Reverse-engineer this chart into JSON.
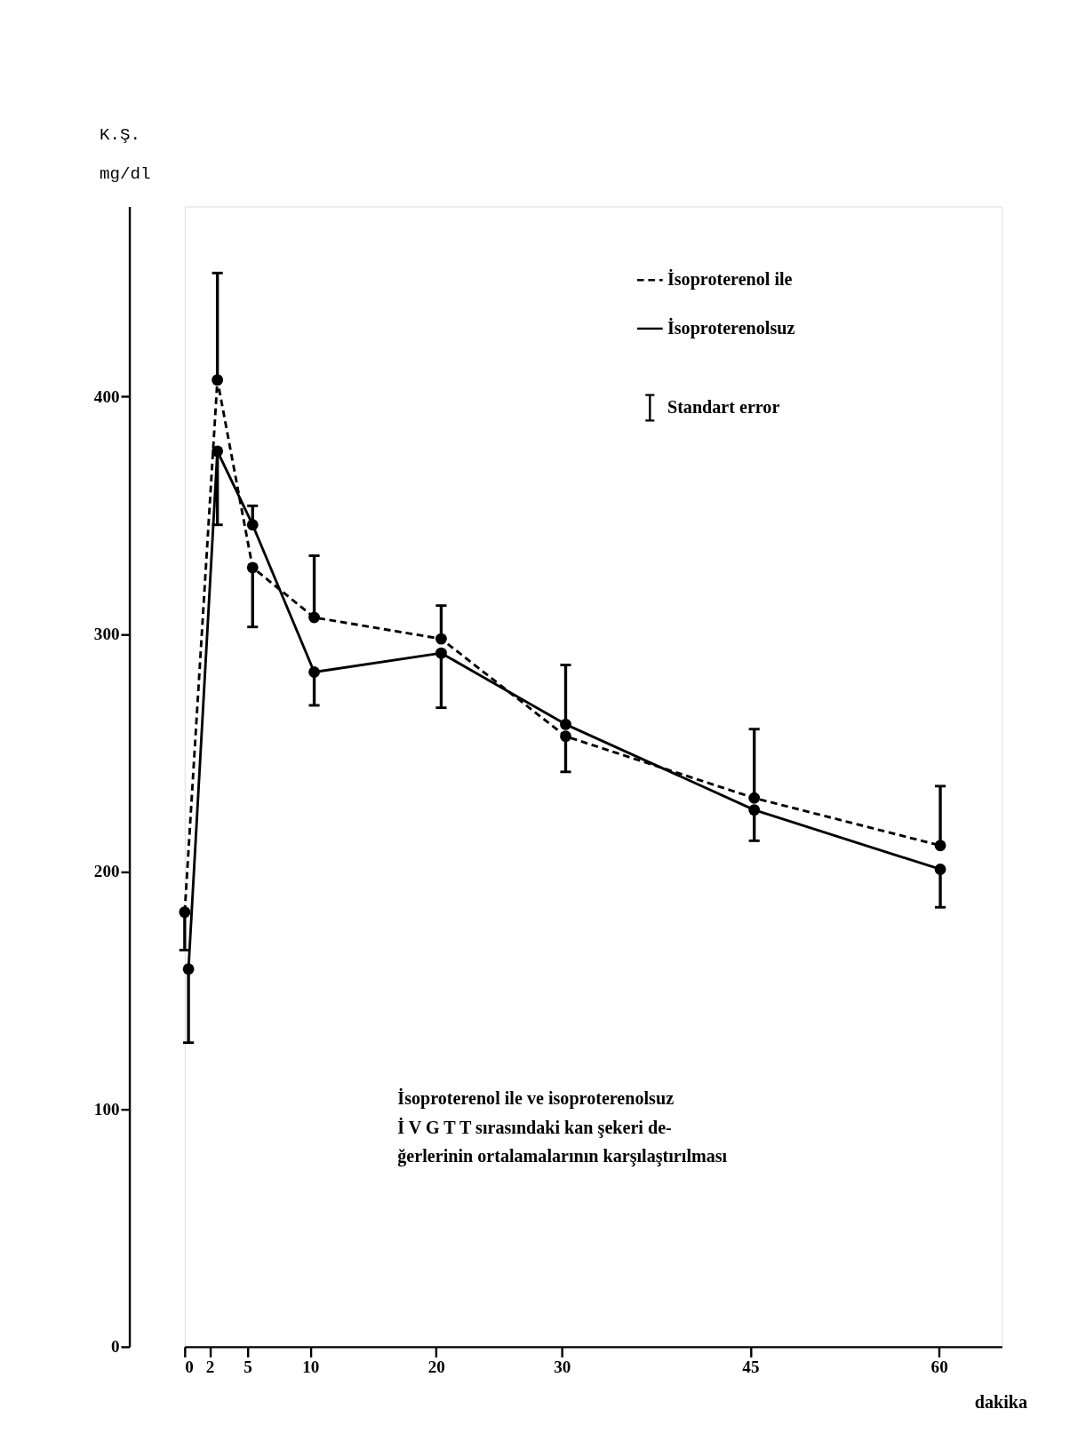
{
  "chart_data": {
    "type": "line",
    "xlabel": "dakika",
    "ylabel": "K.Ş.\nmg/dl",
    "xlim": [
      0,
      65
    ],
    "ylim": [
      0,
      480
    ],
    "xticks": [
      0,
      2,
      5,
      10,
      20,
      30,
      45,
      60
    ],
    "yticks": [
      0,
      100,
      200,
      300,
      400
    ],
    "grid": false,
    "legend": "top right",
    "marker": "circle",
    "series": [
      {
        "name": "İsoproterenol ile",
        "color": "#000000",
        "line_style": "dashed",
        "x": [
          0,
          2.6,
          5.4,
          10.3,
          20.4,
          30.3,
          45.3,
          60.1
        ],
        "values": [
          183,
          407,
          328,
          307,
          298,
          257,
          231,
          211
        ],
        "errors": [
          [
            167,
            183
          ],
          [
            407,
            452
          ],
          [
            303,
            328
          ],
          [
            307,
            333
          ],
          [
            298,
            312
          ],
          [
            242,
            257
          ],
          [
            231,
            260
          ],
          [
            211,
            236
          ]
        ]
      },
      {
        "name": "İsoproterenolsuz",
        "color": "#000000",
        "line_style": "solid",
        "x": [
          0.3,
          2.6,
          5.4,
          10.3,
          20.4,
          30.3,
          45.3,
          60.1
        ],
        "values": [
          159,
          377,
          346,
          284,
          292,
          262,
          226,
          201
        ],
        "errors": [
          [
            128,
            159
          ],
          [
            346,
            377
          ],
          [
            346,
            354
          ],
          [
            270,
            284
          ],
          [
            269,
            292
          ],
          [
            262,
            287
          ],
          [
            213,
            226
          ],
          [
            185,
            201
          ]
        ]
      }
    ],
    "annotations": [
      "Standart error",
      "İsoproterenol ile  ve  isoproterenolsuz\nİ V G T T   sırasındaki  kan  şekeri de-\nğerlerinin ortalamalarının  karşılaştırılması"
    ]
  }
}
